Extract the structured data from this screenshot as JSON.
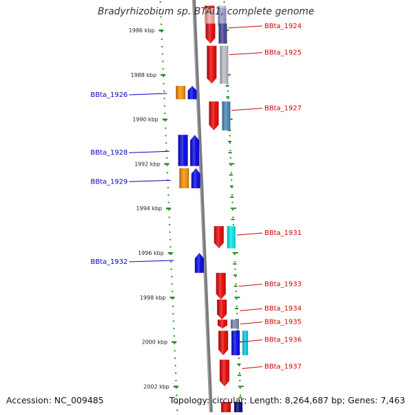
{
  "title": "Bradyrhizobium sp. BTAi1, complete genome",
  "accession": "Accession: NC_009485",
  "summary": "Topology: circular; Length: 8,264,687 bp; Genes: 7,463",
  "colors": {
    "backbone": "#7a7a7a",
    "tick": "#1e8a1e",
    "left_label": "#0000bb",
    "right_label": "#cc0000",
    "axis_text": "#222222"
  },
  "axis_ticks": [
    {
      "label": "1986 kbp",
      "kbp": 1986
    },
    {
      "label": "1988 kbp",
      "kbp": 1988
    },
    {
      "label": "1990 kbp",
      "kbp": 1990
    },
    {
      "label": "1992 kbp",
      "kbp": 1992
    },
    {
      "label": "1994 kbp",
      "kbp": 1994
    },
    {
      "label": "1996 kbp",
      "kbp": 1996
    },
    {
      "label": "1998 kbp",
      "kbp": 1998
    },
    {
      "label": "2000 kbp",
      "kbp": 2000
    },
    {
      "label": "2002 kbp",
      "kbp": 2002
    }
  ],
  "labels_left": [
    {
      "text": "BBta_1926",
      "kbp": 1988.9
    },
    {
      "text": "BBta_1928",
      "kbp": 1991.5
    },
    {
      "text": "BBta_1929",
      "kbp": 1992.8
    },
    {
      "text": "BBta_1932",
      "kbp": 1996.4
    }
  ],
  "labels_right": [
    {
      "text": "BBta_1924",
      "kbp": 1985.9
    },
    {
      "text": "BBta_1925",
      "kbp": 1987.1
    },
    {
      "text": "BBta_1927",
      "kbp": 1989.6
    },
    {
      "text": "BBta_1931",
      "kbp": 1995.2
    },
    {
      "text": "BBta_1933",
      "kbp": 1997.5
    },
    {
      "text": "BBta_1934",
      "kbp": 1998.6
    },
    {
      "text": "BBta_1935",
      "kbp": 1999.2
    },
    {
      "text": "BBta_1936",
      "kbp": 2000.0
    },
    {
      "text": "BBta_1937",
      "kbp": 2001.2
    }
  ],
  "genes": [
    {
      "start": 1984.9,
      "end": 1985.2,
      "color": "#e60000",
      "track": "r1",
      "dir": "down"
    },
    {
      "start": 1984.9,
      "end": 1985.2,
      "color": "#c8c8d8",
      "track": "r2",
      "dir": "none"
    },
    {
      "start": 1985.0,
      "end": 1985.8,
      "color": "#9999cc",
      "track": "r2",
      "dir": "none"
    },
    {
      "start": 1985.0,
      "end": 1985.7,
      "color": "#f2a0a0",
      "track": "r1",
      "dir": "none"
    },
    {
      "start": 1985.7,
      "end": 1986.6,
      "color": "#e60000",
      "track": "r1",
      "dir": "down"
    },
    {
      "start": 1985.7,
      "end": 1986.6,
      "color": "#404090",
      "track": "r2",
      "dir": "none"
    },
    {
      "start": 1986.7,
      "end": 1988.4,
      "color": "#e60000",
      "track": "r1",
      "dir": "down"
    },
    {
      "start": 1986.7,
      "end": 1988.4,
      "color": "#b8b8c4",
      "track": "r2",
      "dir": "none"
    },
    {
      "start": 1988.5,
      "end": 1989.1,
      "color": "#f28c00",
      "track": "l2",
      "dir": "none"
    },
    {
      "start": 1988.5,
      "end": 1989.1,
      "color": "#0000e6",
      "track": "l1",
      "dir": "up"
    },
    {
      "start": 1989.2,
      "end": 1990.5,
      "color": "#e60000",
      "track": "r1",
      "dir": "down"
    },
    {
      "start": 1989.2,
      "end": 1990.5,
      "color": "#4682b4",
      "track": "r2",
      "dir": "none"
    },
    {
      "start": 1990.7,
      "end": 1992.1,
      "color": "#0000e6",
      "track": "l2",
      "dir": "none"
    },
    {
      "start": 1990.7,
      "end": 1992.1,
      "color": "#0000e6",
      "track": "l1",
      "dir": "up"
    },
    {
      "start": 1992.2,
      "end": 1993.1,
      "color": "#f28c00",
      "track": "l2",
      "dir": "none"
    },
    {
      "start": 1992.2,
      "end": 1993.1,
      "color": "#0000e6",
      "track": "l1",
      "dir": "up"
    },
    {
      "start": 1994.8,
      "end": 1995.8,
      "color": "#e60000",
      "track": "r1",
      "dir": "down"
    },
    {
      "start": 1994.8,
      "end": 1995.8,
      "color": "#00e6e6",
      "track": "r2",
      "dir": "none"
    },
    {
      "start": 1996.0,
      "end": 1996.9,
      "color": "#0000e6",
      "track": "l1",
      "dir": "up"
    },
    {
      "start": 1996.9,
      "end": 1998.1,
      "color": "#e60000",
      "track": "r1",
      "dir": "down"
    },
    {
      "start": 1998.1,
      "end": 1999.0,
      "color": "#e60000",
      "track": "r1",
      "dir": "down"
    },
    {
      "start": 1999.0,
      "end": 1999.4,
      "color": "#e60000",
      "track": "r1",
      "dir": "down"
    },
    {
      "start": 1999.0,
      "end": 1999.4,
      "color": "#8080a8",
      "track": "r2",
      "dir": "none"
    },
    {
      "start": 1999.5,
      "end": 2000.6,
      "color": "#e60000",
      "track": "r1",
      "dir": "down"
    },
    {
      "start": 1999.5,
      "end": 2000.6,
      "color": "#0000e6",
      "track": "r2",
      "dir": "none"
    },
    {
      "start": 1999.5,
      "end": 2000.6,
      "color": "#00c8e6",
      "track": "r3",
      "dir": "none"
    },
    {
      "start": 2000.8,
      "end": 2002.0,
      "color": "#e60000",
      "track": "r1",
      "dir": "down"
    },
    {
      "start": 2002.7,
      "end": 2003.3,
      "color": "#e60000",
      "track": "r1",
      "dir": "none"
    },
    {
      "start": 2002.7,
      "end": 2003.3,
      "color": "#000080",
      "track": "r2",
      "dir": "none"
    }
  ]
}
